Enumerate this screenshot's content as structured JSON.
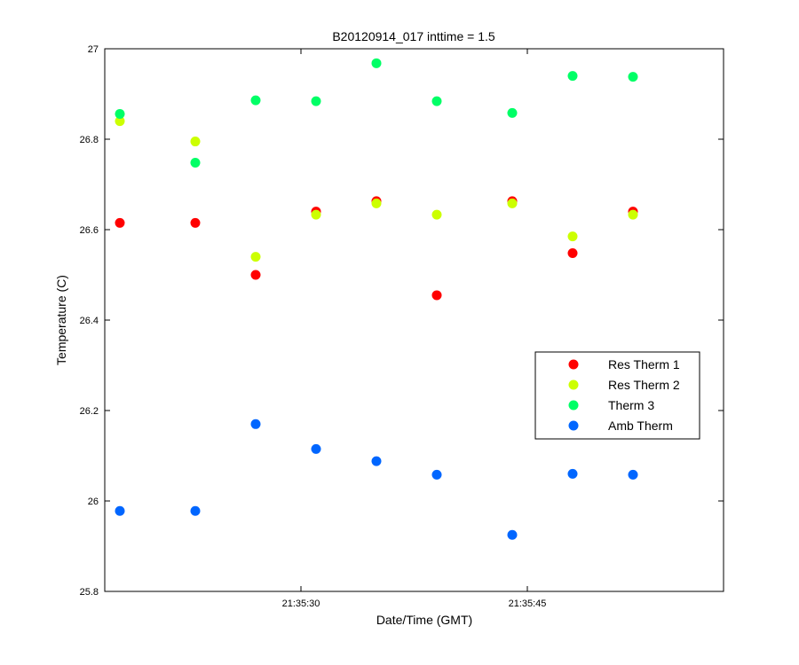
{
  "chart_data": {
    "type": "scatter",
    "title": "B20120914_017 inttime = 1.5",
    "xlabel": "Date/Time (GMT)",
    "ylabel": "Temperature (C)",
    "x_unit": "time",
    "xlim": [
      "21:35:17",
      "21:35:58"
    ],
    "ylim": [
      25.8,
      27
    ],
    "x_ticks": [
      "21:35:30",
      "21:35:45"
    ],
    "y_ticks": [
      25.8,
      26,
      26.2,
      26.4,
      26.6,
      26.8,
      27
    ],
    "grid": false,
    "legend_position": "right",
    "x": [
      "21:35:18",
      "21:35:23",
      "21:35:27",
      "21:35:31",
      "21:35:35",
      "21:35:39",
      "21:35:44",
      "21:35:48",
      "21:35:52"
    ],
    "series": [
      {
        "name": "Res Therm 1",
        "color": "#ff0000",
        "values": [
          26.615,
          26.615,
          26.5,
          26.64,
          26.663,
          26.455,
          26.663,
          26.548,
          26.64
        ]
      },
      {
        "name": "Res Therm 2",
        "color": "#ccff00",
        "values": [
          26.84,
          26.795,
          26.54,
          26.633,
          26.658,
          26.633,
          26.658,
          26.585,
          26.633
        ]
      },
      {
        "name": "Therm 3",
        "color": "#00ff66",
        "values": [
          26.856,
          26.748,
          26.886,
          26.884,
          26.968,
          26.884,
          26.858,
          26.94,
          26.938
        ]
      },
      {
        "name": "Amb Therm",
        "color": "#0066ff",
        "values": [
          25.978,
          25.978,
          26.17,
          26.115,
          26.088,
          26.058,
          25.925,
          26.06,
          26.058
        ]
      }
    ]
  }
}
